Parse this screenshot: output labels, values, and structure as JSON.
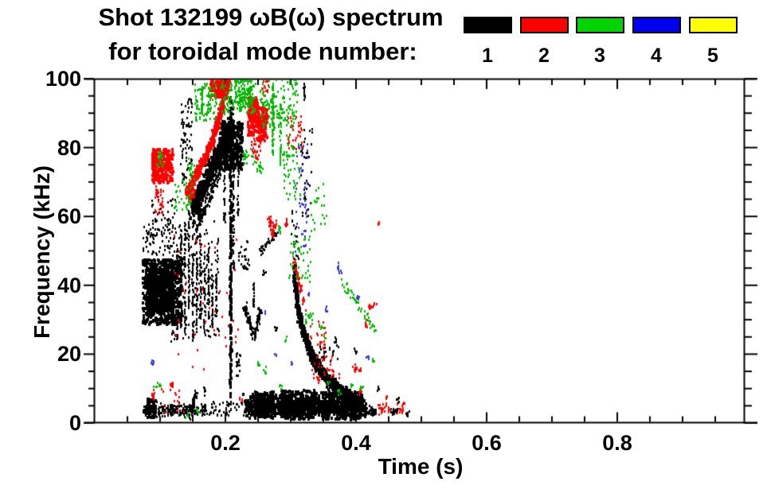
{
  "title": {
    "line1": "Shot 132199 ωB(ω) spectrum",
    "line2": "for toroidal mode number:"
  },
  "legend": {
    "modes": [
      {
        "label": "1",
        "color": "#000000"
      },
      {
        "label": "2",
        "color": "#ff0000"
      },
      {
        "label": "3",
        "color": "#00d400"
      },
      {
        "label": "4",
        "color": "#0000f0"
      },
      {
        "label": "5",
        "color": "#ffff00"
      }
    ]
  },
  "axes": {
    "x": {
      "label": "Time (s)",
      "tick_labels": [
        "0.2",
        "0.4",
        "0.6",
        "0.8"
      ],
      "tick_values": [
        0.2,
        0.4,
        0.6,
        0.8
      ],
      "minor_step": 0.05,
      "min": 0,
      "max": 0.994
    },
    "y": {
      "label": "Frequency (kHz)",
      "tick_labels": [
        "0",
        "20",
        "40",
        "60",
        "80",
        "100"
      ],
      "tick_values": [
        0,
        20,
        40,
        60,
        80,
        100
      ],
      "minor_step": 5,
      "min": 0,
      "max": 100
    }
  },
  "chart_data": {
    "type": "scatter",
    "title": "Shot 132199 ωB(ω) spectrum for toroidal mode number: 1 2 3 4 5",
    "xlabel": "Time (s)",
    "ylabel": "Frequency (kHz)",
    "xlim": [
      0,
      1.0
    ],
    "ylim": [
      0,
      100
    ],
    "grid": false,
    "legend_position": "top",
    "series": [
      {
        "name": "n=1",
        "color": "#000000"
      },
      {
        "name": "n=2",
        "color": "#ff0000"
      },
      {
        "name": "n=3",
        "color": "#00b800"
      },
      {
        "name": "n=4",
        "color": "#3a3ad6"
      },
      {
        "name": "n=5",
        "color": "#ffff00"
      }
    ],
    "cluster_fields": [
      "mode",
      "kind(b=blob,s=streak,v=vline,d=dot)",
      "t0_s",
      "f0_kHz",
      "t1_s",
      "f1_kHz",
      "spread",
      "n_points",
      "dot_px"
    ],
    "clusters": [
      [
        1,
        "b",
        0.072,
        29,
        0.132,
        48,
        0,
        700,
        3
      ],
      [
        1,
        "b",
        0.079,
        33,
        0.116,
        45,
        0,
        420,
        3
      ],
      [
        1,
        "b",
        0.086,
        49,
        0.124,
        66,
        0,
        90,
        2
      ],
      [
        1,
        "b",
        0.072,
        50,
        0.09,
        58,
        0,
        25,
        2
      ],
      [
        1,
        "v",
        0.118,
        26,
        0.118,
        48,
        0.0012,
        45,
        2
      ],
      [
        1,
        "v",
        0.125,
        24,
        0.125,
        52,
        0.0012,
        50,
        2
      ],
      [
        1,
        "v",
        0.131,
        28,
        0.131,
        58,
        0.0012,
        55,
        2
      ],
      [
        1,
        "v",
        0.137,
        25,
        0.137,
        60,
        0.0012,
        55,
        2
      ],
      [
        1,
        "v",
        0.143,
        30,
        0.143,
        63,
        0.0012,
        60,
        2
      ],
      [
        1,
        "v",
        0.149,
        24,
        0.149,
        60,
        0.0012,
        55,
        2
      ],
      [
        1,
        "v",
        0.155,
        27,
        0.155,
        57,
        0.0012,
        50,
        2
      ],
      [
        1,
        "v",
        0.161,
        30,
        0.161,
        55,
        0.0012,
        45,
        2
      ],
      [
        1,
        "v",
        0.167,
        26,
        0.167,
        50,
        0.0012,
        40,
        2
      ],
      [
        1,
        "v",
        0.173,
        30,
        0.173,
        52,
        0.0012,
        40,
        2
      ],
      [
        1,
        "v",
        0.179,
        28,
        0.179,
        45,
        0.0012,
        35,
        2
      ],
      [
        1,
        "v",
        0.185,
        30,
        0.185,
        44,
        0.0012,
        30,
        2
      ],
      [
        1,
        "b",
        0.115,
        24,
        0.19,
        60,
        0,
        140,
        2
      ],
      [
        1,
        "b",
        0.131,
        70,
        0.148,
        95,
        0,
        80,
        2
      ],
      [
        1,
        "s",
        0.148,
        62,
        0.205,
        86,
        3.5,
        520,
        3
      ],
      [
        1,
        "s",
        0.155,
        57,
        0.2,
        78,
        2.5,
        180,
        2
      ],
      [
        1,
        "b",
        0.188,
        74,
        0.225,
        88,
        0,
        360,
        3
      ],
      [
        1,
        "v",
        0.2065,
        8,
        0.2065,
        95,
        0.0015,
        230,
        3
      ],
      [
        1,
        "v",
        0.211,
        45,
        0.211,
        92,
        0.0012,
        80,
        2
      ],
      [
        1,
        "v",
        0.1975,
        58,
        0.1975,
        88,
        0.0012,
        50,
        2
      ],
      [
        1,
        "v",
        0.218,
        60,
        0.218,
        80,
        0.0012,
        35,
        2
      ],
      [
        1,
        "b",
        0.218,
        45,
        0.235,
        54,
        0,
        28,
        2
      ],
      [
        1,
        "v",
        0.2425,
        34,
        0.2425,
        42,
        0.0012,
        22,
        2
      ],
      [
        1,
        "s",
        0.2275,
        34.5,
        0.2435,
        25,
        1.3,
        65,
        2
      ],
      [
        1,
        "s",
        0.2435,
        25,
        0.2525,
        34,
        1.3,
        65,
        2
      ],
      [
        1,
        "s",
        0.251,
        50,
        0.277,
        55.5,
        1.0,
        40,
        2
      ],
      [
        1,
        "d",
        0.276,
        28.2,
        0,
        0,
        1.2,
        6,
        2
      ],
      [
        1,
        "d",
        0.258,
        44,
        0,
        0,
        1.0,
        7,
        2
      ],
      [
        1,
        "s",
        0.073,
        4,
        0.168,
        4.2,
        2.0,
        240,
        2
      ],
      [
        1,
        "b",
        0.078,
        2,
        0.092,
        7.5,
        0,
        60,
        3
      ],
      [
        1,
        "s",
        0.145,
        4,
        0.156,
        9,
        1.2,
        40,
        2
      ],
      [
        1,
        "v",
        0.167,
        8,
        0.167,
        11,
        0.001,
        10,
        2
      ],
      [
        1,
        "b",
        0.17,
        2.5,
        0.228,
        6.5,
        0,
        50,
        2
      ],
      [
        1,
        "s",
        0.229,
        5.5,
        0.412,
        5.2,
        2.8,
        1000,
        3
      ],
      [
        1,
        "b",
        0.243,
        2,
        0.272,
        9.5,
        0,
        200,
        3
      ],
      [
        1,
        "b",
        0.283,
        1.5,
        0.338,
        10,
        0,
        280,
        3
      ],
      [
        1,
        "b",
        0.345,
        1.5,
        0.405,
        9.5,
        0,
        280,
        3
      ],
      [
        1,
        "s",
        0.412,
        3.8,
        0.43,
        3.5,
        1.2,
        40,
        2
      ],
      [
        1,
        "b",
        0.452,
        2.5,
        0.464,
        4.5,
        0,
        18,
        2
      ],
      [
        1,
        "d",
        0.478,
        3,
        0,
        0,
        1.0,
        10,
        2
      ],
      [
        1,
        "s",
        0.3035,
        46,
        0.309,
        34,
        1.6,
        85,
        3
      ],
      [
        1,
        "s",
        0.309,
        34,
        0.318,
        26.5,
        1.6,
        95,
        3
      ],
      [
        1,
        "s",
        0.318,
        26.5,
        0.332,
        19.5,
        1.7,
        115,
        3
      ],
      [
        1,
        "s",
        0.332,
        19.5,
        0.35,
        14,
        1.8,
        125,
        3
      ],
      [
        1,
        "s",
        0.35,
        14,
        0.37,
        10.5,
        1.8,
        125,
        3
      ],
      [
        1,
        "s",
        0.37,
        10.5,
        0.392,
        8,
        1.8,
        120,
        3
      ],
      [
        1,
        "s",
        0.392,
        8,
        0.408,
        6.8,
        1.6,
        85,
        3
      ],
      [
        1,
        "b",
        0.3,
        48,
        0.311,
        62,
        0,
        20,
        2
      ],
      [
        1,
        "v",
        0.32,
        93,
        0.32,
        99,
        0.0012,
        16,
        2
      ],
      [
        1,
        "b",
        0.314,
        60,
        0.332,
        86,
        0,
        38,
        2
      ],
      [
        1,
        "b",
        0.343,
        18,
        0.372,
        23,
        0,
        24,
        2
      ],
      [
        1,
        "d",
        0.368,
        24.4,
        0,
        0,
        1.0,
        6,
        2
      ],
      [
        1,
        "d",
        0.398,
        21,
        0,
        0,
        1.0,
        6,
        2
      ],
      [
        1,
        "d",
        0.433,
        10.5,
        0,
        0,
        1.0,
        5,
        2
      ],
      [
        1,
        "d",
        0.463,
        6.8,
        0,
        0,
        0.8,
        6,
        2
      ],
      [
        1,
        "b",
        0.215,
        14,
        0.222,
        21,
        0,
        18,
        2
      ],
      [
        2,
        "b",
        0.086,
        70,
        0.118,
        80,
        0,
        220,
        3
      ],
      [
        2,
        "b",
        0.091,
        61,
        0.104,
        69,
        0,
        35,
        2
      ],
      [
        2,
        "d",
        0.089,
        8.5,
        0,
        0,
        1.5,
        10,
        2
      ],
      [
        2,
        "b",
        0.1,
        2.5,
        0.14,
        12,
        0,
        16,
        2
      ],
      [
        2,
        "s",
        0.14,
        67,
        0.178,
        82,
        1.6,
        240,
        3
      ],
      [
        2,
        "s",
        0.178,
        82,
        0.204,
        100,
        1.6,
        220,
        3
      ],
      [
        2,
        "b",
        0.176,
        95,
        0.197,
        100,
        0,
        110,
        3
      ],
      [
        2,
        "s",
        0.1425,
        64.5,
        0.152,
        68,
        1.2,
        35,
        2
      ],
      [
        2,
        "b",
        0.233,
        84,
        0.249,
        95,
        0,
        140,
        3
      ],
      [
        2,
        "b",
        0.247,
        82,
        0.262,
        92,
        0,
        110,
        3
      ],
      [
        2,
        "b",
        0.239,
        77,
        0.253,
        83,
        0,
        35,
        2
      ],
      [
        2,
        "s",
        0.266,
        60,
        0.271,
        54.5,
        0.8,
        28,
        2
      ],
      [
        2,
        "s",
        0.271,
        54.5,
        0.2755,
        59,
        0.8,
        22,
        2
      ],
      [
        2,
        "d",
        0.292,
        58.5,
        0,
        0,
        1.5,
        12,
        2
      ],
      [
        2,
        "b",
        0.12,
        15,
        0.218,
        55,
        0,
        40,
        2
      ],
      [
        2,
        "b",
        0.295,
        80,
        0.316,
        90,
        0,
        38,
        2
      ],
      [
        2,
        "b",
        0.255,
        95,
        0.268,
        100,
        0,
        14,
        2
      ],
      [
        2,
        "s",
        0.304,
        47,
        0.323,
        33,
        1.2,
        42,
        2
      ],
      [
        2,
        "b",
        0.328,
        22,
        0.352,
        30,
        0,
        28,
        2
      ],
      [
        2,
        "b",
        0.33,
        13,
        0.375,
        20,
        0,
        32,
        2
      ],
      [
        2,
        "d",
        0.342,
        13,
        0,
        0,
        1.0,
        8,
        2
      ],
      [
        2,
        "s",
        0.395,
        16.5,
        0.405,
        15.5,
        0.8,
        14,
        2
      ],
      [
        2,
        "d",
        0.405,
        9.3,
        0,
        0,
        0.8,
        5,
        2
      ],
      [
        2,
        "d",
        0.414,
        29,
        0,
        0,
        1.2,
        8,
        2
      ],
      [
        2,
        "d",
        0.421,
        33.8,
        0,
        0,
        1.0,
        8,
        2
      ],
      [
        2,
        "d",
        0.428,
        35,
        0,
        0,
        0.8,
        5,
        2
      ],
      [
        2,
        "d",
        0.447,
        7.5,
        0,
        0,
        0.8,
        6,
        2
      ],
      [
        2,
        "b",
        0.432,
        2.5,
        0.452,
        6,
        0,
        20,
        2
      ],
      [
        2,
        "b",
        0.461,
        3,
        0.473,
        6.5,
        0,
        16,
        2
      ],
      [
        2,
        "d",
        0.434,
        58.5,
        0,
        0,
        0.8,
        5,
        2
      ],
      [
        2,
        "d",
        0.222,
        7.2,
        0,
        0,
        0.8,
        6,
        2
      ],
      [
        2,
        "d",
        0.117,
        11.2,
        0,
        0,
        0.8,
        5,
        2
      ],
      [
        3,
        "b",
        0.094,
        74,
        0.104,
        79,
        0,
        20,
        2
      ],
      [
        3,
        "b",
        0.121,
        62,
        0.148,
        71,
        0,
        38,
        2
      ],
      [
        3,
        "b",
        0.152,
        88,
        0.185,
        99,
        0,
        100,
        2
      ],
      [
        3,
        "v",
        0.163,
        90,
        0.163,
        98,
        0.0012,
        28,
        2
      ],
      [
        3,
        "b",
        0.19,
        90,
        0.245,
        100,
        0,
        130,
        2
      ],
      [
        3,
        "b",
        0.213,
        92,
        0.24,
        100,
        0,
        85,
        2
      ],
      [
        3,
        "b",
        0.225,
        75,
        0.245,
        80,
        0,
        20,
        2
      ],
      [
        3,
        "b",
        0.245,
        73,
        0.256,
        76,
        0,
        12,
        2
      ],
      [
        3,
        "b",
        0.252,
        86,
        0.31,
        100,
        0,
        140,
        2
      ],
      [
        3,
        "v",
        0.2715,
        78,
        0.2715,
        100,
        0.0015,
        65,
        2
      ],
      [
        3,
        "v",
        0.2835,
        75,
        0.2835,
        93,
        0.0012,
        42,
        2
      ],
      [
        3,
        "b",
        0.287,
        65,
        0.314,
        84,
        0,
        55,
        2
      ],
      [
        3,
        "d",
        0.282,
        56.5,
        0,
        0,
        1.5,
        8,
        2
      ],
      [
        3,
        "b",
        0.296,
        41,
        0.33,
        55,
        0,
        42,
        2
      ],
      [
        3,
        "b",
        0.32,
        29,
        0.334,
        32.5,
        0,
        16,
        2
      ],
      [
        3,
        "b",
        0.33,
        56,
        0.356,
        70,
        0,
        22,
        2
      ],
      [
        3,
        "s",
        0.375,
        42,
        0.43,
        27,
        1.2,
        45,
        2
      ],
      [
        3,
        "d",
        0.346,
        28.5,
        0,
        0,
        1.0,
        5,
        2
      ],
      [
        3,
        "d",
        0.351,
        25.3,
        0,
        0,
        1.0,
        5,
        2
      ],
      [
        3,
        "d",
        0.291,
        24.7,
        0,
        0,
        1.0,
        5,
        2
      ],
      [
        3,
        "d",
        0.249,
        17.5,
        0,
        0,
        1.0,
        6,
        2
      ],
      [
        3,
        "d",
        0.26,
        15.3,
        0,
        0,
        1.0,
        5,
        2
      ],
      [
        3,
        "d",
        0.285,
        11,
        0,
        0,
        0.8,
        4,
        2
      ],
      [
        3,
        "d",
        0.356,
        12,
        0,
        0,
        0.8,
        5,
        2
      ],
      [
        3,
        "d",
        0.373,
        9.2,
        0,
        0,
        0.8,
        5,
        2
      ],
      [
        3,
        "d",
        0.394,
        11.2,
        0,
        0,
        0.8,
        5,
        2
      ],
      [
        3,
        "d",
        0.407,
        10.7,
        0,
        0,
        0.8,
        5,
        2
      ],
      [
        3,
        "d",
        0.098,
        11.8,
        0,
        0,
        0.8,
        5,
        2
      ],
      [
        3,
        "d",
        0.093,
        10.6,
        0,
        0,
        0.8,
        4,
        2
      ],
      [
        3,
        "d",
        0.157,
        3.9,
        0,
        0,
        0.8,
        5,
        2
      ],
      [
        3,
        "d",
        0.141,
        2.4,
        0,
        0,
        0.8,
        4,
        2
      ],
      [
        3,
        "d",
        0.426,
        18.3,
        0,
        0,
        0.8,
        4,
        2
      ],
      [
        3,
        "b",
        0.142,
        71,
        0.152,
        78,
        0,
        16,
        2
      ],
      [
        4,
        "d",
        0.0865,
        17.5,
        0,
        0,
        1.0,
        6,
        2
      ],
      [
        4,
        "b",
        0.306,
        50,
        0.325,
        82,
        0,
        42,
        2
      ],
      [
        4,
        "d",
        0.371,
        45.5,
        0,
        0,
        1.2,
        8,
        2
      ],
      [
        4,
        "d",
        0.375,
        43.8,
        0,
        0,
        0.8,
        4,
        2
      ],
      [
        4,
        "d",
        0.401,
        37.3,
        0,
        0,
        1.0,
        5,
        2
      ],
      [
        4,
        "d",
        0.354,
        33.2,
        0,
        0,
        1.0,
        5,
        2
      ],
      [
        4,
        "d",
        0.418,
        19.5,
        0,
        0,
        0.8,
        4,
        2
      ],
      [
        4,
        "d",
        0.276,
        20,
        0,
        0,
        0.8,
        4,
        2
      ],
      [
        4,
        "d",
        0.3,
        18,
        0,
        0,
        0.8,
        4,
        2
      ],
      [
        4,
        "d",
        0.327,
        37.8,
        0,
        0,
        0.8,
        4,
        2
      ],
      [
        4,
        "d",
        0.261,
        32.6,
        0,
        0,
        0.8,
        4,
        2
      ]
    ]
  }
}
